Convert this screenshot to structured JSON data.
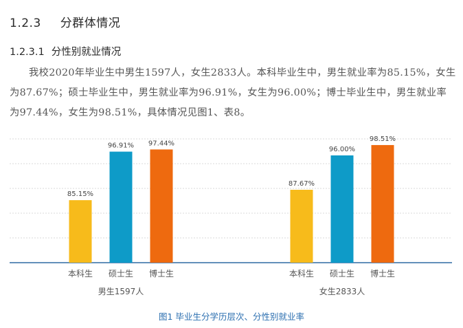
{
  "section": {
    "number": "1.2.3",
    "title": "分群体情况"
  },
  "subsection": {
    "number": "1.2.3.1",
    "title": "分性别就业情况"
  },
  "paragraph": "我校2020年毕业生中男生1597人，女生2833人。本科毕业生中，男生就业率为85.15%，女生为87.67%；硕士毕业生中，男生就业率为96.91%，女生为96.00%；博士毕业生中，男生就业率为97.44%，女生为98.51%，具体情况见图1、表8。",
  "chart_data": {
    "type": "bar",
    "title": "图1 毕业生分学历层次、分性别就业率",
    "groups": [
      "男生1597人",
      "女生2833人"
    ],
    "categories": [
      "本科生",
      "硕士生",
      "博士生"
    ],
    "series": [
      {
        "group": "男生1597人",
        "values": [
          85.15,
          96.91,
          97.44
        ],
        "labels": [
          "85.15%",
          "96.91%",
          "97.44%"
        ]
      },
      {
        "group": "女生2833人",
        "values": [
          87.67,
          96.0,
          98.51
        ],
        "labels": [
          "87.67%",
          "96.00%",
          "98.51%"
        ]
      }
    ],
    "ylim": [
      70,
      100
    ],
    "grid": true,
    "colors": [
      "#f7bb1b",
      "#0e9bc8",
      "#ee6a0f"
    ]
  }
}
